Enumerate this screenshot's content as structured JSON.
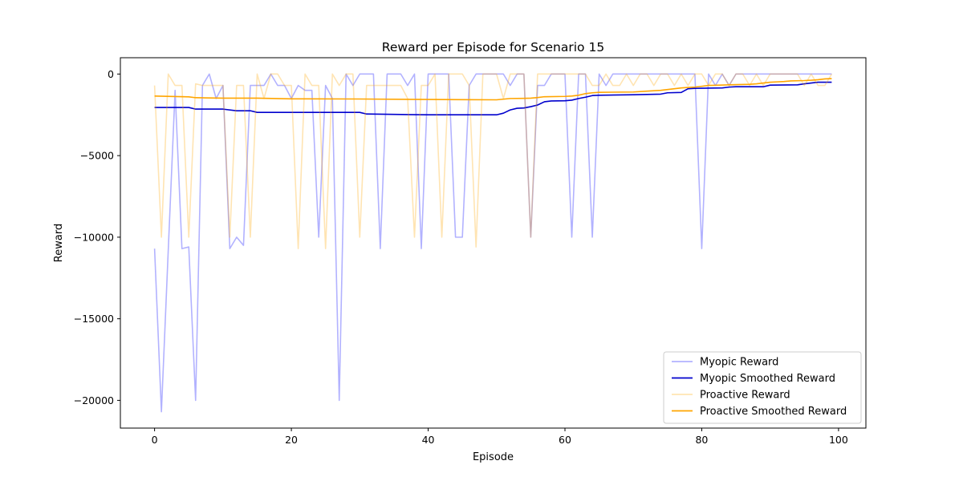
{
  "chart_data": {
    "type": "line",
    "title": "Reward per Episode for Scenario 15",
    "xlabel": "Episode",
    "ylabel": "Reward",
    "xlim": [
      -5,
      104
    ],
    "ylim": [
      -21700,
      1000
    ],
    "xticks": [
      0,
      20,
      40,
      60,
      80,
      100
    ],
    "yticks": [
      0,
      -5000,
      -10000,
      -15000,
      -20000
    ],
    "ytick_labels": [
      "0",
      "−5000",
      "−10000",
      "−15000",
      "−20000"
    ],
    "grid": false,
    "legend_position": "lower-right",
    "series": [
      {
        "name": "Myopic Reward",
        "color": "#0000ff",
        "opacity": 0.3,
        "x": [
          0,
          1,
          2,
          3,
          4,
          5,
          6,
          7,
          8,
          9,
          10,
          11,
          12,
          13,
          14,
          15,
          16,
          17,
          18,
          19,
          20,
          21,
          22,
          23,
          24,
          25,
          26,
          27,
          28,
          29,
          30,
          31,
          32,
          33,
          34,
          35,
          36,
          37,
          38,
          39,
          40,
          41,
          42,
          43,
          44,
          45,
          46,
          47,
          48,
          49,
          50,
          51,
          52,
          53,
          54,
          55,
          56,
          57,
          58,
          59,
          60,
          61,
          62,
          63,
          64,
          65,
          66,
          67,
          68,
          69,
          70,
          71,
          72,
          73,
          74,
          75,
          76,
          77,
          78,
          79,
          80,
          81,
          82,
          83,
          84,
          85,
          86,
          87,
          88,
          89,
          90,
          91,
          92,
          93,
          94,
          95,
          96,
          97,
          98,
          99
        ],
        "values": [
          -10700,
          -20700,
          -10800,
          -1000,
          -10700,
          -10600,
          -20000,
          -700,
          0,
          -1500,
          -700,
          -10700,
          -10000,
          -10500,
          -700,
          -700,
          -700,
          0,
          -700,
          -700,
          -1500,
          -700,
          -1000,
          -1000,
          -10000,
          -700,
          -1500,
          -20000,
          0,
          -700,
          0,
          0,
          0,
          -10700,
          0,
          0,
          0,
          -700,
          0,
          -10700,
          0,
          0,
          0,
          0,
          -10000,
          -10000,
          -700,
          0,
          0,
          0,
          0,
          0,
          -700,
          0,
          0,
          -10000,
          -700,
          -700,
          0,
          0,
          0,
          -10000,
          0,
          0,
          -10000,
          0,
          -700,
          0,
          0,
          0,
          0,
          0,
          0,
          0,
          0,
          0,
          0,
          0,
          0,
          0,
          -10700,
          0,
          -700,
          0,
          -700,
          0,
          0,
          0,
          0,
          0,
          0,
          0,
          0,
          0,
          0,
          0,
          0,
          0,
          0,
          0
        ]
      },
      {
        "name": "Myopic Smoothed Reward",
        "color": "#0000cd",
        "opacity": 1,
        "x": [
          0,
          5,
          6,
          10,
          12,
          14,
          15,
          20,
          30,
          31,
          40,
          45,
          50,
          51,
          52,
          53,
          54,
          55,
          56,
          57,
          58,
          60,
          61,
          62,
          63,
          64,
          65,
          70,
          74,
          75,
          77,
          78,
          79,
          80,
          83,
          84,
          85,
          89,
          90,
          94,
          95,
          96,
          97,
          99
        ],
        "values": [
          -2050,
          -2050,
          -2150,
          -2150,
          -2250,
          -2250,
          -2350,
          -2350,
          -2350,
          -2450,
          -2500,
          -2500,
          -2500,
          -2400,
          -2200,
          -2100,
          -2080,
          -2000,
          -1900,
          -1700,
          -1650,
          -1640,
          -1600,
          -1500,
          -1420,
          -1320,
          -1300,
          -1270,
          -1230,
          -1150,
          -1130,
          -900,
          -880,
          -870,
          -850,
          -800,
          -780,
          -780,
          -680,
          -660,
          -600,
          -550,
          -500,
          -500
        ]
      },
      {
        "name": "Proactive Reward",
        "color": "#ffa500",
        "opacity": 0.3,
        "x": [
          0,
          1,
          2,
          3,
          4,
          5,
          6,
          7,
          8,
          9,
          10,
          11,
          12,
          13,
          14,
          15,
          16,
          17,
          18,
          19,
          20,
          21,
          22,
          23,
          24,
          25,
          26,
          27,
          28,
          29,
          30,
          31,
          32,
          33,
          34,
          35,
          36,
          37,
          38,
          39,
          40,
          41,
          42,
          43,
          44,
          45,
          46,
          47,
          48,
          49,
          50,
          51,
          52,
          53,
          54,
          55,
          56,
          57,
          58,
          59,
          60,
          61,
          62,
          63,
          64,
          65,
          66,
          67,
          68,
          69,
          70,
          71,
          72,
          73,
          74,
          75,
          76,
          77,
          78,
          79,
          80,
          81,
          82,
          83,
          84,
          85,
          86,
          87,
          88,
          89,
          90,
          91,
          92,
          93,
          94,
          95,
          96,
          97,
          98,
          99
        ],
        "values": [
          -700,
          -10000,
          0,
          -700,
          -700,
          -10000,
          -600,
          -700,
          -700,
          -700,
          -700,
          -10000,
          -700,
          -700,
          -10000,
          0,
          -1500,
          0,
          0,
          -700,
          -700,
          -10700,
          0,
          -700,
          -700,
          -10700,
          0,
          -700,
          0,
          0,
          -10000,
          -700,
          -700,
          -700,
          -700,
          -700,
          -700,
          -1500,
          -10000,
          -700,
          -700,
          0,
          -10000,
          0,
          0,
          0,
          -700,
          -10600,
          0,
          0,
          0,
          -1500,
          0,
          0,
          0,
          -10000,
          0,
          0,
          0,
          0,
          0,
          0,
          0,
          0,
          -700,
          -700,
          0,
          -700,
          -700,
          0,
          -700,
          0,
          0,
          -700,
          0,
          0,
          -700,
          0,
          -700,
          0,
          0,
          -700,
          0,
          0,
          -700,
          0,
          0,
          -700,
          0,
          -700,
          0,
          0,
          0,
          0,
          0,
          -700,
          0,
          -700,
          -700,
          0
        ]
      },
      {
        "name": "Proactive Smoothed Reward",
        "color": "#ffa500",
        "opacity": 1,
        "x": [
          0,
          5,
          6,
          10,
          15,
          20,
          30,
          40,
          45,
          50,
          52,
          54,
          55,
          56,
          57,
          60,
          61,
          62,
          63,
          64,
          65,
          70,
          72,
          74,
          75,
          76,
          77,
          78,
          79,
          80,
          81,
          85,
          87,
          88,
          89,
          90,
          91,
          92,
          93,
          95,
          96,
          97,
          98,
          99
        ],
        "values": [
          -1350,
          -1400,
          -1450,
          -1480,
          -1480,
          -1520,
          -1530,
          -1560,
          -1570,
          -1580,
          -1500,
          -1490,
          -1480,
          -1440,
          -1390,
          -1370,
          -1350,
          -1300,
          -1200,
          -1150,
          -1120,
          -1100,
          -1050,
          -1000,
          -950,
          -900,
          -850,
          -820,
          -800,
          -750,
          -700,
          -650,
          -630,
          -600,
          -550,
          -500,
          -480,
          -460,
          -420,
          -400,
          -380,
          -350,
          -300,
          -280
        ]
      }
    ]
  }
}
